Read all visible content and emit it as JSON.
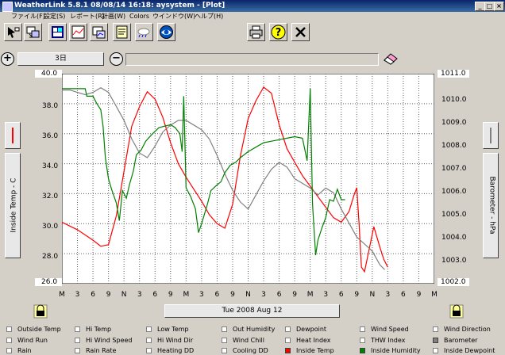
{
  "window": {
    "title": "WeatherLink 5.8.1  08/08/14  16:18: aysystem - [Plot]",
    "controls": [
      "_",
      "□",
      "×"
    ]
  },
  "menu": [
    "ファイル(F)",
    "設定(S)",
    "レポート(R)",
    "計画(W)",
    "Colors",
    "ウインドウ(W)",
    "ヘルプ(H)"
  ],
  "range": {
    "label": "3日"
  },
  "y_left": {
    "label": "Inside Temp - C",
    "ticks": [
      "40.0",
      "38.0",
      "36.0",
      "34.0",
      "32.0",
      "30.0",
      "28.0",
      "26.0"
    ]
  },
  "y_right": {
    "label": "Barometer - hPa",
    "ticks": [
      "1011.0",
      "1010.0",
      "1009.0",
      "1008.0",
      "1007.0",
      "1006.0",
      "1005.0",
      "1004.0",
      "1003.0",
      "1002.0"
    ]
  },
  "x_ticks": [
    "M",
    "3",
    "6",
    "9",
    "N",
    "3",
    "6",
    "9",
    "M",
    "3",
    "6",
    "9",
    "N",
    "3",
    "6",
    "9",
    "M",
    "3",
    "6",
    "9",
    "N",
    "3",
    "6",
    "9",
    "M"
  ],
  "date_label": "Tue 2008 Aug 12",
  "legend": [
    [
      "Outside Temp",
      "Hi Temp",
      "Low Temp",
      "Out Humidity",
      "Dewpoint",
      "Wind Speed",
      "Wind Direction"
    ],
    [
      "Wind Run",
      "Hi Wind Speed",
      "Hi Wind Dir",
      "Wind Chill",
      "Heat Index",
      "THW Index",
      "Barometer"
    ],
    [
      "Rain",
      "Rain Rate",
      "Heating DD",
      "Cooling DD",
      "Inside Temp",
      "Inside Humidity",
      "Inside Dewpoint"
    ]
  ],
  "legend_checked": {
    "Barometer": "#808080",
    "Inside Temp": "#ff0000",
    "Inside Humidity": "#008000"
  },
  "chart_data": {
    "type": "line",
    "y_left_range": [
      26.0,
      40.0
    ],
    "y_right_range": [
      1002.0,
      1011.0
    ],
    "series": [
      {
        "name": "Inside Temp",
        "color": "#ff0000",
        "axis": "left",
        "points": [
          [
            0,
            30.1
          ],
          [
            2,
            29.6
          ],
          [
            4,
            28.9
          ],
          [
            5,
            28.5
          ],
          [
            6,
            28.6
          ],
          [
            7,
            30.5
          ],
          [
            8,
            33.5
          ],
          [
            9,
            36.5
          ],
          [
            10,
            37.8
          ],
          [
            11,
            38.8
          ],
          [
            12,
            38.3
          ],
          [
            13,
            37.1
          ],
          [
            14,
            35.4
          ],
          [
            15,
            34.0
          ],
          [
            16,
            33.1
          ],
          [
            17,
            32.3
          ],
          [
            18,
            31.5
          ],
          [
            19,
            30.6
          ],
          [
            20,
            30.0
          ],
          [
            21,
            29.7
          ],
          [
            22,
            31.3
          ],
          [
            23,
            34.5
          ],
          [
            24,
            37.0
          ],
          [
            25,
            38.2
          ],
          [
            26,
            39.1
          ],
          [
            27,
            38.7
          ],
          [
            28,
            36.6
          ],
          [
            29,
            35.0
          ],
          [
            30,
            34.1
          ],
          [
            31,
            33.2
          ],
          [
            32,
            32.5
          ],
          [
            33,
            31.8
          ],
          [
            34,
            31.1
          ],
          [
            35,
            30.4
          ],
          [
            36,
            30.1
          ],
          [
            37,
            30.8
          ],
          [
            37.7,
            32.0
          ],
          [
            38,
            32.4
          ],
          [
            38.3,
            30.0
          ],
          [
            38.6,
            27.1
          ],
          [
            39,
            26.8
          ],
          [
            39.4,
            27.8
          ],
          [
            40.2,
            29.8
          ],
          [
            41,
            28.4
          ],
          [
            41.5,
            27.6
          ],
          [
            42,
            27.1
          ]
        ]
      },
      {
        "name": "Barometer",
        "color": "#808080",
        "axis": "right",
        "points": [
          [
            0,
            1010.3
          ],
          [
            1,
            1010.3
          ],
          [
            2,
            1010.2
          ],
          [
            3,
            1010.1
          ],
          [
            4,
            1010.2
          ],
          [
            5,
            1010.4
          ],
          [
            6,
            1010.2
          ],
          [
            7,
            1009.6
          ],
          [
            8,
            1009.0
          ],
          [
            9,
            1008.2
          ],
          [
            10,
            1007.6
          ],
          [
            11,
            1007.4
          ],
          [
            12,
            1007.9
          ],
          [
            13,
            1008.5
          ],
          [
            14,
            1008.8
          ],
          [
            15,
            1009.0
          ],
          [
            16,
            1009.0
          ],
          [
            17,
            1008.8
          ],
          [
            18,
            1008.6
          ],
          [
            19,
            1008.2
          ],
          [
            20,
            1007.5
          ],
          [
            21,
            1006.7
          ],
          [
            22,
            1006.0
          ],
          [
            23,
            1005.5
          ],
          [
            24,
            1005.2
          ],
          [
            25,
            1005.8
          ],
          [
            26,
            1006.4
          ],
          [
            27,
            1006.9
          ],
          [
            28,
            1007.2
          ],
          [
            29,
            1007.0
          ],
          [
            30,
            1006.5
          ],
          [
            31,
            1006.3
          ],
          [
            32,
            1006.1
          ],
          [
            33,
            1005.8
          ],
          [
            34,
            1006.1
          ],
          [
            35,
            1005.9
          ],
          [
            36,
            1005.2
          ],
          [
            37,
            1004.6
          ],
          [
            38,
            1004.0
          ],
          [
            39,
            1003.7
          ],
          [
            40,
            1003.4
          ],
          [
            41,
            1002.8
          ],
          [
            41.6,
            1002.6
          ]
        ]
      },
      {
        "name": "Inside Humidity",
        "color": "#008000",
        "axis": "left",
        "points": [
          [
            0,
            39.0
          ],
          [
            3,
            39.0
          ],
          [
            3.2,
            38.5
          ],
          [
            4,
            38.5
          ],
          [
            4.5,
            38.0
          ],
          [
            5,
            37.6
          ],
          [
            5.3,
            36.5
          ],
          [
            5.6,
            34.4
          ],
          [
            6,
            33.0
          ],
          [
            6.4,
            32.3
          ],
          [
            7,
            31.4
          ],
          [
            7.4,
            30.2
          ],
          [
            7.8,
            32.2
          ],
          [
            8.3,
            31.7
          ],
          [
            8.7,
            32.6
          ],
          [
            9.2,
            33.5
          ],
          [
            9.6,
            34.6
          ],
          [
            10.2,
            34.9
          ],
          [
            10.8,
            35.5
          ],
          [
            11.5,
            35.9
          ],
          [
            12.5,
            36.4
          ],
          [
            13.2,
            36.5
          ],
          [
            14,
            36.6
          ],
          [
            14.6,
            36.4
          ],
          [
            15.2,
            36.0
          ],
          [
            15.5,
            34.8
          ],
          [
            15.7,
            38.5
          ],
          [
            16,
            32.4
          ],
          [
            16.6,
            31.8
          ],
          [
            17.2,
            31.0
          ],
          [
            17.6,
            29.4
          ],
          [
            18,
            30.0
          ],
          [
            18.7,
            31.2
          ],
          [
            19.2,
            32.2
          ],
          [
            19.8,
            32.5
          ],
          [
            20.5,
            32.8
          ],
          [
            21,
            33.4
          ],
          [
            21.7,
            33.9
          ],
          [
            22.4,
            34.1
          ],
          [
            23,
            34.4
          ],
          [
            24,
            34.8
          ],
          [
            25,
            35.1
          ],
          [
            26,
            35.4
          ],
          [
            27,
            35.5
          ],
          [
            28,
            35.6
          ],
          [
            29,
            35.7
          ],
          [
            30,
            35.8
          ],
          [
            31,
            35.7
          ],
          [
            31.6,
            34.2
          ],
          [
            32,
            39.0
          ],
          [
            32.3,
            31.3
          ],
          [
            32.7,
            27.9
          ],
          [
            33,
            28.9
          ],
          [
            33.5,
            29.7
          ],
          [
            34,
            30.4
          ],
          [
            34.5,
            31.6
          ],
          [
            35,
            31.5
          ],
          [
            35.5,
            32.3
          ],
          [
            36,
            31.6
          ],
          [
            36.5,
            31.6
          ]
        ]
      }
    ]
  }
}
